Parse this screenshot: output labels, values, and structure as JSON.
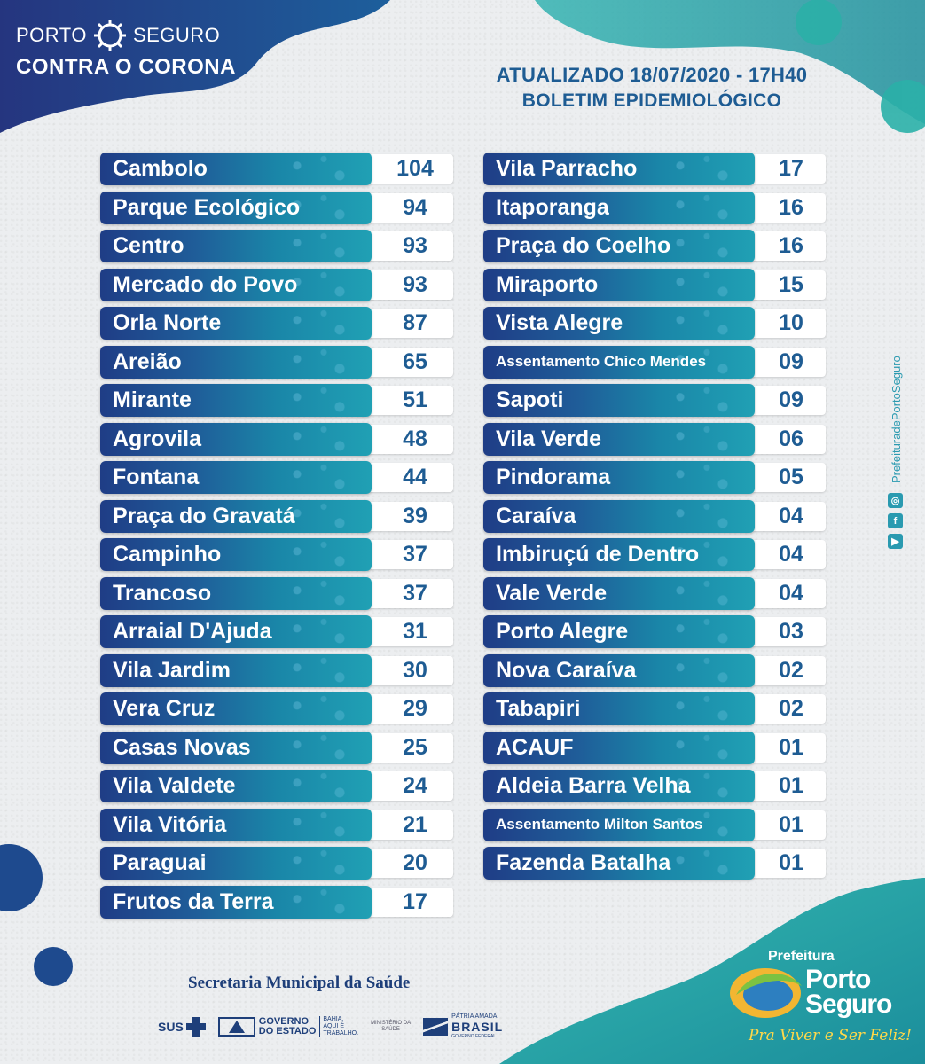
{
  "brand": {
    "line1_left": "PORTO",
    "line1_right": "SEGURO",
    "line2": "CONTRA O CORONA"
  },
  "headline": {
    "updated": "ATUALIZADO 18/07/2020 - 17H40",
    "bulletin": "BOLETIM EPIDEMIOLÓGICO"
  },
  "left_column": [
    {
      "name": "Cambolo",
      "value": "104"
    },
    {
      "name": "Parque Ecológico",
      "value": "94"
    },
    {
      "name": "Centro",
      "value": "93"
    },
    {
      "name": "Mercado do Povo",
      "value": "93"
    },
    {
      "name": "Orla Norte",
      "value": "87"
    },
    {
      "name": "Areião",
      "value": "65"
    },
    {
      "name": "Mirante",
      "value": "51"
    },
    {
      "name": "Agrovila",
      "value": "48"
    },
    {
      "name": "Fontana",
      "value": "44"
    },
    {
      "name": "Praça do Gravatá",
      "value": "39"
    },
    {
      "name": "Campinho",
      "value": "37"
    },
    {
      "name": "Trancoso",
      "value": "37"
    },
    {
      "name": "Arraial D'Ajuda",
      "value": "31"
    },
    {
      "name": "Vila Jardim",
      "value": "30"
    },
    {
      "name": "Vera Cruz",
      "value": "29"
    },
    {
      "name": "Casas Novas",
      "value": "25"
    },
    {
      "name": "Vila Valdete",
      "value": "24"
    },
    {
      "name": "Vila Vitória",
      "value": "21"
    },
    {
      "name": "Paraguai",
      "value": "20"
    },
    {
      "name": "Frutos da Terra",
      "value": "17"
    }
  ],
  "right_column": [
    {
      "name": "Vila Parracho",
      "value": "17"
    },
    {
      "name": "Itaporanga",
      "value": "16"
    },
    {
      "name": "Praça do Coelho",
      "value": "16"
    },
    {
      "name": "Miraporto",
      "value": "15"
    },
    {
      "name": "Vista Alegre",
      "value": "10"
    },
    {
      "name": "Assentamento Chico Mendes",
      "value": "09"
    },
    {
      "name": "Sapoti",
      "value": "09"
    },
    {
      "name": "Vila Verde",
      "value": "06"
    },
    {
      "name": "Pindorama",
      "value": "05"
    },
    {
      "name": "Caraíva",
      "value": "04"
    },
    {
      "name": "Imbiruçú de Dentro",
      "value": "04"
    },
    {
      "name": "Vale Verde",
      "value": "04"
    },
    {
      "name": "Porto Alegre",
      "value": "03"
    },
    {
      "name": "Nova Caraíva",
      "value": "02"
    },
    {
      "name": "Tabapiri",
      "value": "02"
    },
    {
      "name": "ACAUF",
      "value": "01"
    },
    {
      "name": "Aldeia Barra Velha",
      "value": "01"
    },
    {
      "name": "Assentamento Milton Santos",
      "value": "01"
    },
    {
      "name": "Fazenda Batalha",
      "value": "01"
    }
  ],
  "social": {
    "handle": "PrefeituradePortoSeguro",
    "icons": [
      "youtube-icon",
      "facebook-icon",
      "instagram-icon"
    ]
  },
  "footer": {
    "secretaria": "Secretaria Municipal da Saúde",
    "sus": "SUS",
    "gov_line1": "GOVERNO",
    "gov_line2": "DO ESTADO",
    "gov_sub1": "BAHIA,",
    "gov_sub2": "AQUI É",
    "gov_sub3": "TRABALHO.",
    "ministerio_line1": "MINISTÉRIO DA",
    "ministerio_line2": "SAÚDE",
    "brasil_top": "PÁTRIA AMADA",
    "brasil_main": "BRASIL",
    "brasil_sub": "GOVERNO FEDERAL"
  },
  "prefeitura": {
    "label": "Prefeitura",
    "porto": "Porto",
    "seguro": "Seguro",
    "slogan": "Pra Viver e Ser Feliz!"
  },
  "colors": {
    "navy": "#1f3d86",
    "teal": "#20a0b4",
    "accent_text": "#1e5c93",
    "slogan_yellow": "#ffd84a"
  }
}
